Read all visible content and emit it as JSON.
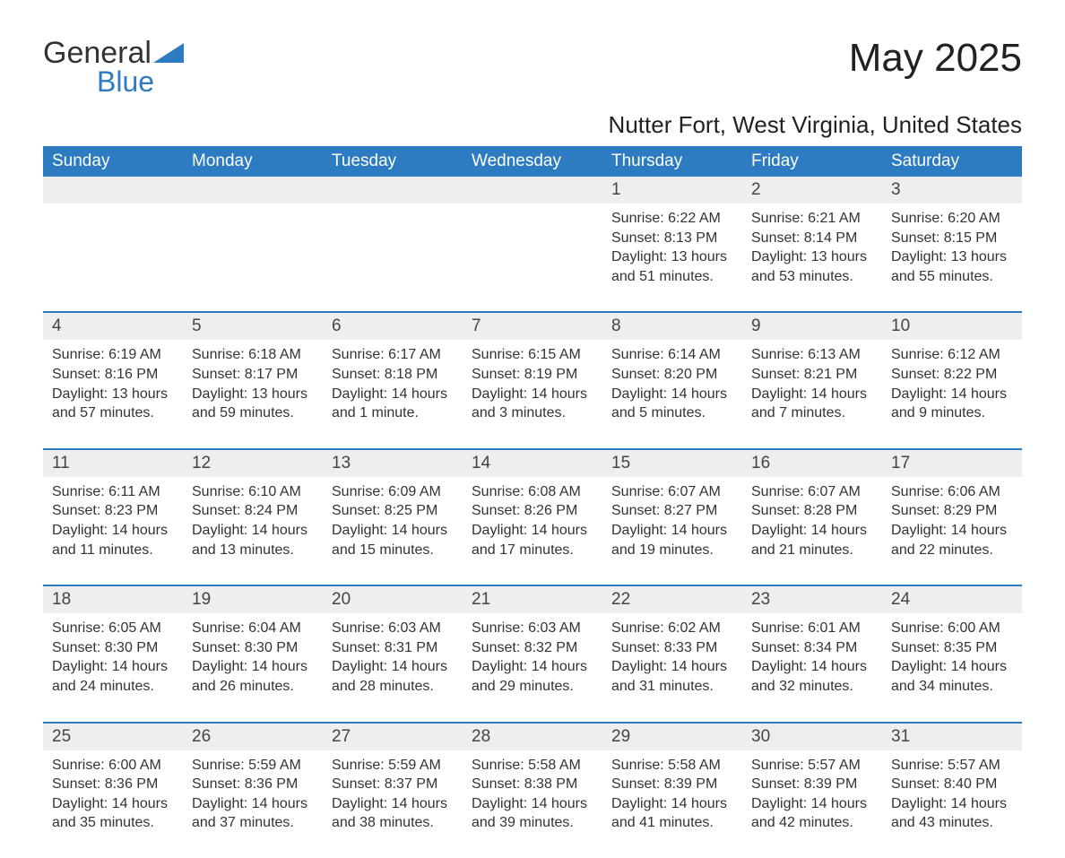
{
  "brand": {
    "line1": "General",
    "line2": "Blue",
    "icon_color": "#2d7bc0"
  },
  "title": "May 2025",
  "location": "Nutter Fort, West Virginia, United States",
  "colors": {
    "header_bg": "#2d7bc0",
    "header_text": "#ffffff",
    "daynum_bg": "#eeeeee",
    "border": "#2d7bc0",
    "body_text": "#333333",
    "page_bg": "#ffffff"
  },
  "weekdays": [
    "Sunday",
    "Monday",
    "Tuesday",
    "Wednesday",
    "Thursday",
    "Friday",
    "Saturday"
  ],
  "grid": [
    [
      null,
      null,
      null,
      null,
      {
        "n": "1",
        "sr": "6:22 AM",
        "ss": "8:13 PM",
        "dl": "13 hours and 51 minutes."
      },
      {
        "n": "2",
        "sr": "6:21 AM",
        "ss": "8:14 PM",
        "dl": "13 hours and 53 minutes."
      },
      {
        "n": "3",
        "sr": "6:20 AM",
        "ss": "8:15 PM",
        "dl": "13 hours and 55 minutes."
      }
    ],
    [
      {
        "n": "4",
        "sr": "6:19 AM",
        "ss": "8:16 PM",
        "dl": "13 hours and 57 minutes."
      },
      {
        "n": "5",
        "sr": "6:18 AM",
        "ss": "8:17 PM",
        "dl": "13 hours and 59 minutes."
      },
      {
        "n": "6",
        "sr": "6:17 AM",
        "ss": "8:18 PM",
        "dl": "14 hours and 1 minute."
      },
      {
        "n": "7",
        "sr": "6:15 AM",
        "ss": "8:19 PM",
        "dl": "14 hours and 3 minutes."
      },
      {
        "n": "8",
        "sr": "6:14 AM",
        "ss": "8:20 PM",
        "dl": "14 hours and 5 minutes."
      },
      {
        "n": "9",
        "sr": "6:13 AM",
        "ss": "8:21 PM",
        "dl": "14 hours and 7 minutes."
      },
      {
        "n": "10",
        "sr": "6:12 AM",
        "ss": "8:22 PM",
        "dl": "14 hours and 9 minutes."
      }
    ],
    [
      {
        "n": "11",
        "sr": "6:11 AM",
        "ss": "8:23 PM",
        "dl": "14 hours and 11 minutes."
      },
      {
        "n": "12",
        "sr": "6:10 AM",
        "ss": "8:24 PM",
        "dl": "14 hours and 13 minutes."
      },
      {
        "n": "13",
        "sr": "6:09 AM",
        "ss": "8:25 PM",
        "dl": "14 hours and 15 minutes."
      },
      {
        "n": "14",
        "sr": "6:08 AM",
        "ss": "8:26 PM",
        "dl": "14 hours and 17 minutes."
      },
      {
        "n": "15",
        "sr": "6:07 AM",
        "ss": "8:27 PM",
        "dl": "14 hours and 19 minutes."
      },
      {
        "n": "16",
        "sr": "6:07 AM",
        "ss": "8:28 PM",
        "dl": "14 hours and 21 minutes."
      },
      {
        "n": "17",
        "sr": "6:06 AM",
        "ss": "8:29 PM",
        "dl": "14 hours and 22 minutes."
      }
    ],
    [
      {
        "n": "18",
        "sr": "6:05 AM",
        "ss": "8:30 PM",
        "dl": "14 hours and 24 minutes."
      },
      {
        "n": "19",
        "sr": "6:04 AM",
        "ss": "8:30 PM",
        "dl": "14 hours and 26 minutes."
      },
      {
        "n": "20",
        "sr": "6:03 AM",
        "ss": "8:31 PM",
        "dl": "14 hours and 28 minutes."
      },
      {
        "n": "21",
        "sr": "6:03 AM",
        "ss": "8:32 PM",
        "dl": "14 hours and 29 minutes."
      },
      {
        "n": "22",
        "sr": "6:02 AM",
        "ss": "8:33 PM",
        "dl": "14 hours and 31 minutes."
      },
      {
        "n": "23",
        "sr": "6:01 AM",
        "ss": "8:34 PM",
        "dl": "14 hours and 32 minutes."
      },
      {
        "n": "24",
        "sr": "6:00 AM",
        "ss": "8:35 PM",
        "dl": "14 hours and 34 minutes."
      }
    ],
    [
      {
        "n": "25",
        "sr": "6:00 AM",
        "ss": "8:36 PM",
        "dl": "14 hours and 35 minutes."
      },
      {
        "n": "26",
        "sr": "5:59 AM",
        "ss": "8:36 PM",
        "dl": "14 hours and 37 minutes."
      },
      {
        "n": "27",
        "sr": "5:59 AM",
        "ss": "8:37 PM",
        "dl": "14 hours and 38 minutes."
      },
      {
        "n": "28",
        "sr": "5:58 AM",
        "ss": "8:38 PM",
        "dl": "14 hours and 39 minutes."
      },
      {
        "n": "29",
        "sr": "5:58 AM",
        "ss": "8:39 PM",
        "dl": "14 hours and 41 minutes."
      },
      {
        "n": "30",
        "sr": "5:57 AM",
        "ss": "8:39 PM",
        "dl": "14 hours and 42 minutes."
      },
      {
        "n": "31",
        "sr": "5:57 AM",
        "ss": "8:40 PM",
        "dl": "14 hours and 43 minutes."
      }
    ]
  ],
  "labels": {
    "sunrise": "Sunrise:",
    "sunset": "Sunset:",
    "daylight": "Daylight:"
  }
}
